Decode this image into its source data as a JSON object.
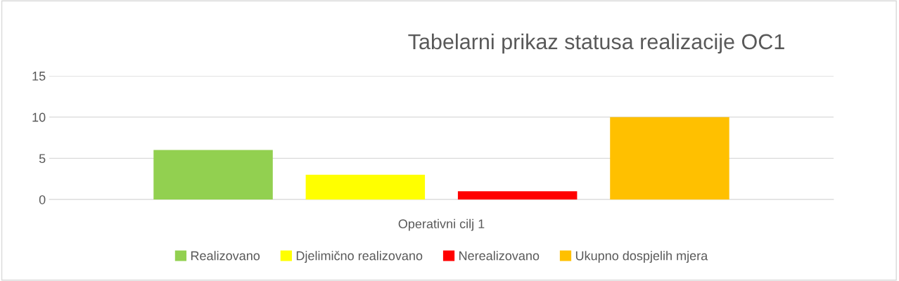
{
  "chart_data": {
    "type": "bar",
    "title": "Tabelarni prikaz statusa realizacije OC1",
    "categories": [
      "Operativni cilj 1"
    ],
    "series": [
      {
        "name": "Realizovano",
        "color": "#92d050",
        "values": [
          6
        ]
      },
      {
        "name": "Djelimično realizovano",
        "color": "#ffff00",
        "values": [
          3
        ]
      },
      {
        "name": "Nerealizovano",
        "color": "#ff0000",
        "values": [
          1
        ]
      },
      {
        "name": "Ukupno dospjelih mjera",
        "color": "#ffc000",
        "values": [
          10
        ]
      }
    ],
    "ylim": [
      0,
      15
    ],
    "yticks": [
      0,
      5,
      10,
      15
    ],
    "grid": "y",
    "legend": "bottom"
  }
}
